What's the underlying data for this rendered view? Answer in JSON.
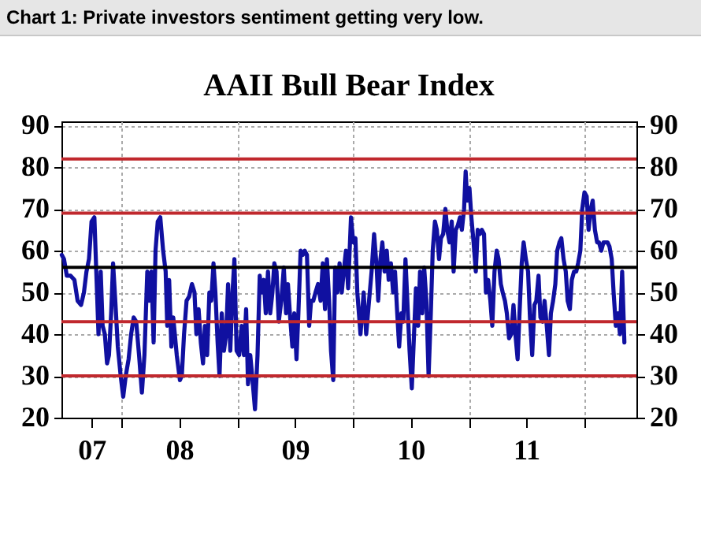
{
  "chart_data": {
    "type": "line",
    "title": "AAII Bull Bear Index",
    "annotations": [
      "Chart 1: Private investors sentiment getting very low."
    ],
    "x": [
      "2007-06-26",
      "2007-07-03",
      "2007-07-12",
      "2007-07-24",
      "2007-08-05",
      "2007-08-15",
      "2007-08-26",
      "2007-09-04",
      "2007-09-12",
      "2007-09-20",
      "2007-09-28",
      "2007-10-07",
      "2007-10-13",
      "2007-10-20",
      "2007-10-27",
      "2007-11-02",
      "2007-11-09",
      "2007-11-16",
      "2007-11-22",
      "2007-11-29",
      "2007-12-05",
      "2007-12-12",
      "2007-12-20",
      "2007-12-29",
      "2008-01-06",
      "2008-01-14",
      "2008-01-23",
      "2008-01-31",
      "2008-02-08",
      "2008-02-16",
      "2008-02-25",
      "2008-03-05",
      "2008-03-13",
      "2008-03-22",
      "2008-03-28",
      "2008-04-04",
      "2008-04-11",
      "2008-04-17",
      "2008-04-24",
      "2008-05-02",
      "2008-05-11",
      "2008-05-19",
      "2008-05-24",
      "2008-05-30",
      "2008-06-06",
      "2008-06-12",
      "2008-06-23",
      "2008-07-03",
      "2008-07-09",
      "2008-07-16",
      "2008-07-24",
      "2008-08-01",
      "2008-08-10",
      "2008-08-18",
      "2008-08-24",
      "2008-08-31",
      "2008-09-07",
      "2008-09-14",
      "2008-09-20",
      "2008-09-27",
      "2008-10-04",
      "2008-10-10",
      "2008-10-17",
      "2008-10-23",
      "2008-10-30",
      "2008-11-05",
      "2008-11-12",
      "2008-11-19",
      "2008-11-26",
      "2008-12-02",
      "2008-12-09",
      "2008-12-16",
      "2008-12-22",
      "2008-12-29",
      "2009-01-06",
      "2009-01-14",
      "2009-01-21",
      "2009-01-28",
      "2009-02-03",
      "2009-02-10",
      "2009-02-16",
      "2009-02-25",
      "2009-03-05",
      "2009-03-12",
      "2009-03-18",
      "2009-03-25",
      "2009-03-31",
      "2009-04-07",
      "2009-04-14",
      "2009-04-21",
      "2009-04-27",
      "2009-05-04",
      "2009-05-11",
      "2009-05-19",
      "2009-05-27",
      "2009-06-03",
      "2009-06-09",
      "2009-06-16",
      "2009-06-23",
      "2009-06-29",
      "2009-07-06",
      "2009-07-12",
      "2009-07-19",
      "2009-07-26",
      "2009-08-01",
      "2009-08-08",
      "2009-08-15",
      "2009-08-21",
      "2009-08-28",
      "2009-09-04",
      "2009-09-12",
      "2009-09-20",
      "2009-09-27",
      "2009-10-04",
      "2009-10-10",
      "2009-10-17",
      "2009-10-23",
      "2009-10-30",
      "2009-11-05",
      "2009-11-12",
      "2009-11-19",
      "2009-11-26",
      "2009-12-02",
      "2009-12-09",
      "2009-12-16",
      "2009-12-25",
      "2010-01-01",
      "2010-01-08",
      "2010-01-14",
      "2010-01-24",
      "2010-02-03",
      "2010-02-11",
      "2010-02-20",
      "2010-02-28",
      "2010-03-08",
      "2010-03-16",
      "2010-03-21",
      "2010-03-28",
      "2010-04-03",
      "2010-04-10",
      "2010-04-17",
      "2010-04-23",
      "2010-04-30",
      "2010-05-07",
      "2010-05-13",
      "2010-05-20",
      "2010-05-26",
      "2010-06-02",
      "2010-06-08",
      "2010-06-15",
      "2010-06-22",
      "2010-06-28",
      "2010-07-05",
      "2010-07-12",
      "2010-07-18",
      "2010-07-25",
      "2010-07-31",
      "2010-08-07",
      "2010-08-13",
      "2010-08-20",
      "2010-08-27",
      "2010-09-03",
      "2010-09-09",
      "2010-09-16",
      "2010-09-22",
      "2010-09-29",
      "2010-10-05",
      "2010-10-12",
      "2010-10-19",
      "2010-10-25",
      "2010-11-01",
      "2010-11-08",
      "2010-11-14",
      "2010-11-21",
      "2010-11-27",
      "2010-12-04",
      "2010-12-10",
      "2010-12-17",
      "2010-12-22",
      "2010-12-27",
      "2011-01-03",
      "2011-01-09",
      "2011-01-16",
      "2011-01-23",
      "2011-01-29",
      "2011-02-05",
      "2011-02-11",
      "2011-02-18",
      "2011-02-24",
      "2011-03-03",
      "2011-03-10",
      "2011-03-16",
      "2011-03-23",
      "2011-03-30",
      "2011-04-05",
      "2011-04-12",
      "2011-04-18",
      "2011-04-25",
      "2011-05-01",
      "2011-05-08",
      "2011-05-15",
      "2011-05-22",
      "2011-05-28",
      "2011-06-04",
      "2011-06-10",
      "2011-06-17",
      "2011-06-23",
      "2011-06-30",
      "2011-07-07",
      "2011-07-13",
      "2011-07-20",
      "2011-07-27",
      "2011-08-02",
      "2011-08-09",
      "2011-08-15",
      "2011-08-22",
      "2011-08-28",
      "2011-09-04",
      "2011-09-11",
      "2011-09-17",
      "2011-09-24",
      "2011-10-01",
      "2011-10-07",
      "2011-10-14",
      "2011-10-20",
      "2011-10-27",
      "2011-11-03",
      "2011-11-09",
      "2011-11-16",
      "2011-11-22",
      "2011-11-29",
      "2011-12-06",
      "2011-12-12",
      "2011-12-19",
      "2011-12-25",
      "2012-01-01",
      "2012-01-08",
      "2012-01-14",
      "2012-01-21",
      "2012-01-27",
      "2012-02-03",
      "2012-02-10",
      "2012-02-16",
      "2012-02-23",
      "2012-03-01",
      "2012-03-07",
      "2012-03-14",
      "2012-03-20",
      "2012-03-27",
      "2012-04-02",
      "2012-04-09",
      "2012-04-16",
      "2012-04-22",
      "2012-04-29",
      "2012-05-06"
    ],
    "series": [
      {
        "color": "#1010a0",
        "values": [
          59,
          58,
          54,
          54,
          53,
          48,
          47,
          50,
          55,
          58,
          67,
          68,
          55,
          40,
          55,
          42,
          40,
          33,
          35,
          45,
          57,
          48,
          37,
          30,
          25,
          30,
          34,
          40,
          44,
          43,
          35,
          26,
          35,
          55,
          48,
          55,
          38,
          60,
          67,
          68,
          60,
          55,
          42,
          53,
          37,
          44,
          35,
          29,
          30,
          40,
          48,
          49,
          52,
          50,
          40,
          46,
          38,
          33,
          42,
          35,
          50,
          48,
          57,
          50,
          38,
          30,
          45,
          36,
          40,
          52,
          36,
          50,
          58,
          36,
          35,
          42,
          35,
          46,
          28,
          35,
          30,
          22,
          35,
          54,
          50,
          53,
          45,
          55,
          45,
          50,
          57,
          55,
          43,
          48,
          56,
          45,
          52,
          44,
          37,
          45,
          34,
          45,
          60,
          59,
          60,
          59,
          42,
          48,
          48,
          50,
          52,
          48,
          57,
          46,
          58,
          48,
          36,
          29,
          56,
          50,
          57,
          50,
          55,
          60,
          51,
          68,
          62,
          63,
          50,
          40,
          50,
          40,
          48,
          55,
          64,
          56,
          48,
          58,
          62,
          55,
          60,
          53,
          57,
          50,
          55,
          45,
          37,
          45,
          43,
          58,
          46,
          36,
          27,
          40,
          51,
          42,
          55,
          45,
          56,
          48,
          30,
          45,
          60,
          67,
          65,
          58,
          63,
          64,
          70,
          65,
          62,
          67,
          55,
          65,
          66,
          68,
          65,
          70,
          79,
          72,
          75,
          68,
          62,
          55,
          65,
          64,
          65,
          64,
          50,
          53,
          48,
          42,
          55,
          60,
          58,
          52,
          50,
          48,
          45,
          39,
          40,
          47,
          40,
          34,
          45,
          57,
          62,
          58,
          55,
          44,
          35,
          47,
          48,
          54,
          44,
          43,
          48,
          42,
          35,
          45,
          48,
          52,
          60,
          62,
          63,
          58,
          55,
          48,
          46,
          53,
          55,
          55,
          57,
          60,
          70,
          74,
          73,
          65,
          70,
          72,
          65,
          62,
          62,
          60,
          62,
          62,
          62,
          61,
          58,
          50,
          42,
          45,
          40,
          55,
          38
        ]
      }
    ],
    "xlim": [
      "2007-06-25",
      "2012-06-13"
    ],
    "xticks": [
      {
        "value": "2007-09-28",
        "label": "07"
      },
      {
        "value": "2008-01-01",
        "label": null
      },
      {
        "value": "2008-07-01",
        "label": "08"
      },
      {
        "value": "2009-01-01",
        "label": null
      },
      {
        "value": "2009-07-01",
        "label": "09"
      },
      {
        "value": "2010-01-01",
        "label": null
      },
      {
        "value": "2010-07-01",
        "label": "10"
      },
      {
        "value": "2011-01-01",
        "label": null
      },
      {
        "value": "2011-07-01",
        "label": "11"
      },
      {
        "value": "2012-01-01",
        "label": null
      }
    ],
    "ylim": [
      20,
      91
    ],
    "yticks": [
      20,
      30,
      40,
      50,
      60,
      70,
      80,
      90
    ],
    "y2lim": [
      20,
      91
    ],
    "y2ticks": [
      20,
      30,
      40,
      50,
      60,
      70,
      80,
      90
    ],
    "ref_lines": [
      {
        "axis": "y",
        "value": 82,
        "color": "#c0282d"
      },
      {
        "axis": "y",
        "value": 69,
        "color": "#c0282d"
      },
      {
        "axis": "y",
        "value": 56,
        "color": "#000000"
      },
      {
        "axis": "y",
        "value": 43,
        "color": "#c0282d"
      },
      {
        "axis": "y",
        "value": 30,
        "color": "#c0282d"
      }
    ],
    "grid": true,
    "line_style": "solid",
    "marker": "none"
  }
}
